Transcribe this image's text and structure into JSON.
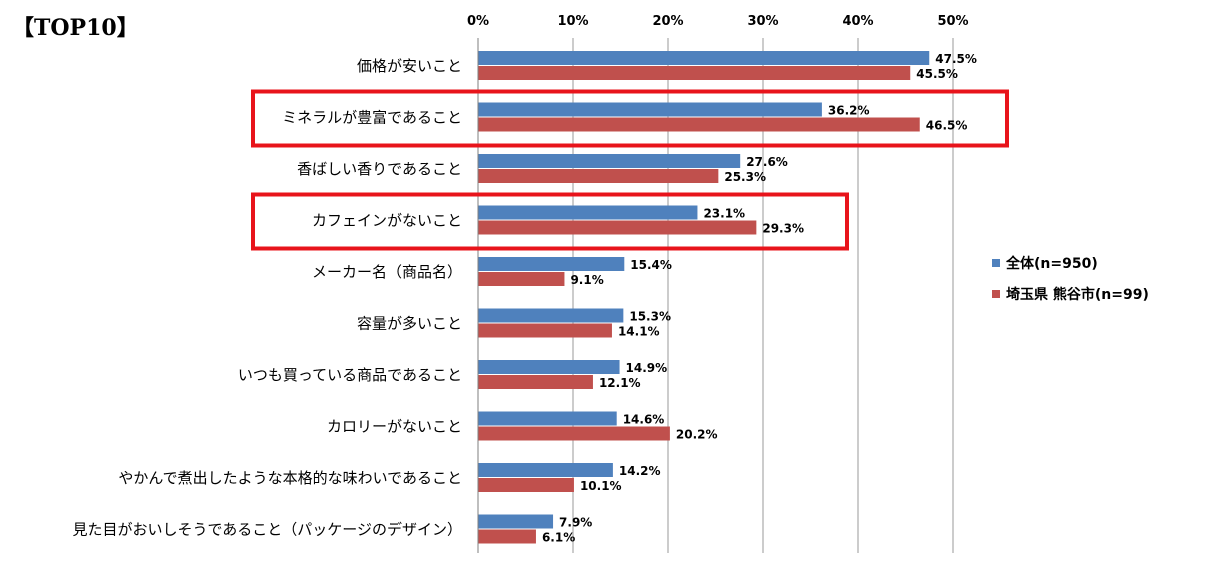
{
  "chart_data": {
    "type": "bar",
    "orientation": "horizontal",
    "title": "【TOP10】",
    "categories": [
      "価格が安いこと",
      "ミネラルが豊富であること",
      "香ばしい香りであること",
      "カフェインがないこと",
      "メーカー名（商品名）",
      "容量が多いこと",
      "いつも買っている商品であること",
      "カロリーがないこと",
      "やかんで煮出したような本格的な味わいであること",
      "見た目がおいしそうであること（パッケージのデザイン）"
    ],
    "series": [
      {
        "name": "全体(n=950)",
        "color": "#4F81BD",
        "values": [
          47.5,
          36.2,
          27.6,
          23.1,
          15.4,
          15.3,
          14.9,
          14.6,
          14.2,
          7.9
        ],
        "labels": [
          "47.5%",
          "36.2%",
          "27.6%",
          "23.1%",
          "15.4%",
          "15.3%",
          "14.9%",
          "14.6%",
          "14.2%",
          "7.9%"
        ]
      },
      {
        "name": "埼玉県 熊谷市(n=99)",
        "color": "#C0504D",
        "values": [
          45.5,
          46.5,
          25.3,
          29.3,
          9.1,
          14.1,
          12.1,
          20.2,
          10.1,
          6.1
        ],
        "labels": [
          "45.5%",
          "46.5%",
          "25.3%",
          "29.3%",
          "9.1%",
          "14.1%",
          "12.1%",
          "20.2%",
          "10.1%",
          "6.1%"
        ]
      }
    ],
    "xlim": [
      0,
      50
    ],
    "xticks": [
      "0%",
      "10%",
      "20%",
      "30%",
      "40%",
      "50%"
    ],
    "xaxis_position": "top",
    "grid": true,
    "legend_position": "right",
    "highlighted_categories": [
      "ミネラルが豊富であること",
      "カフェインがないこと"
    ],
    "highlight_color": "#E8141B"
  }
}
